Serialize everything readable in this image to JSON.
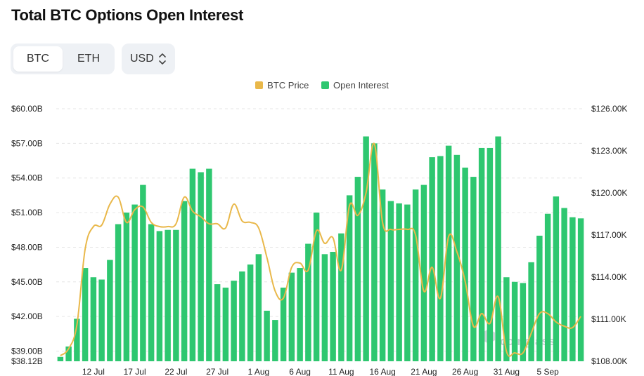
{
  "header": {
    "title": "Total BTC Options Open Interest"
  },
  "toggle": {
    "options": [
      "BTC",
      "ETH"
    ],
    "selected": "BTC"
  },
  "currency": {
    "value": "USD"
  },
  "watermark": "coinglass",
  "colors": {
    "bar": "#2ec770",
    "line": "#e9b84a",
    "grid": "#e6e6e6"
  },
  "chart_data": {
    "type": "bar+line",
    "legend": {
      "placement": "top-center",
      "items": [
        "BTC Price",
        "Open Interest"
      ]
    },
    "grid": true,
    "left_axis": {
      "ticks": [
        60,
        57,
        54,
        51,
        48,
        45,
        42,
        39,
        38.12
      ],
      "labels": [
        "$60.00B",
        "$57.00B",
        "$54.00B",
        "$51.00B",
        "$48.00B",
        "$45.00B",
        "$42.00B",
        "$39.00B",
        "$38.12B"
      ],
      "range": [
        38.12,
        60
      ]
    },
    "right_axis": {
      "ticks": [
        126000,
        123000,
        120000,
        117000,
        114000,
        111000,
        108000
      ],
      "labels": [
        "$126.00K",
        "$123.00K",
        "$120.00K",
        "$117.00K",
        "$114.00K",
        "$111.00K",
        "$108.00K"
      ],
      "range": [
        108000,
        126000
      ]
    },
    "x_ticks": [
      {
        "label": "12 Jul",
        "index": 4
      },
      {
        "label": "17 Jul",
        "index": 9
      },
      {
        "label": "22 Jul",
        "index": 14
      },
      {
        "label": "27 Jul",
        "index": 19
      },
      {
        "label": "1 Aug",
        "index": 24
      },
      {
        "label": "6 Aug",
        "index": 29
      },
      {
        "label": "11 Aug",
        "index": 34
      },
      {
        "label": "16 Aug",
        "index": 39
      },
      {
        "label": "21 Aug",
        "index": 44
      },
      {
        "label": "26 Aug",
        "index": 49
      },
      {
        "label": "31 Aug",
        "index": 54
      },
      {
        "label": "5 Sep",
        "index": 59
      }
    ],
    "series": [
      {
        "name": "Open Interest",
        "type": "bar",
        "axis": "left",
        "values": [
          38.5,
          39.4,
          41.8,
          46.2,
          45.4,
          45.2,
          46.9,
          50.0,
          51.0,
          51.7,
          53.4,
          50.0,
          49.4,
          49.5,
          49.5,
          52.0,
          54.8,
          54.5,
          54.8,
          44.8,
          44.5,
          45.1,
          45.9,
          46.5,
          47.4,
          42.5,
          41.7,
          44.5,
          45.8,
          46.2,
          48.3,
          51.0,
          47.4,
          47.6,
          49.2,
          52.5,
          54.1,
          57.6,
          57.0,
          53.0,
          52.0,
          51.8,
          51.7,
          53.0,
          53.4,
          55.8,
          55.9,
          56.8,
          56.0,
          54.9,
          54.1,
          56.6,
          56.6,
          57.6,
          45.4,
          45.0,
          44.9,
          46.7,
          49.0,
          50.9,
          52.4,
          51.4,
          50.6,
          50.5
        ]
      },
      {
        "name": "BTC Price",
        "type": "line",
        "axis": "right",
        "values": [
          108400,
          108900,
          110600,
          116000,
          117600,
          117700,
          119200,
          119700,
          117900,
          118800,
          119000,
          117900,
          117600,
          117600,
          117800,
          119700,
          118700,
          118300,
          117800,
          117800,
          117500,
          119200,
          118000,
          117900,
          117500,
          115400,
          113000,
          112500,
          114700,
          115000,
          114500,
          117300,
          116400,
          116800,
          114500,
          119100,
          118400,
          120000,
          123500,
          117900,
          117400,
          117400,
          117400,
          117000,
          113000,
          114700,
          112500,
          116900,
          115800,
          113700,
          110500,
          111400,
          110700,
          112600,
          108700,
          108600,
          108600,
          110000,
          111400,
          111400,
          110800,
          110500,
          110400,
          111200
        ]
      }
    ]
  }
}
